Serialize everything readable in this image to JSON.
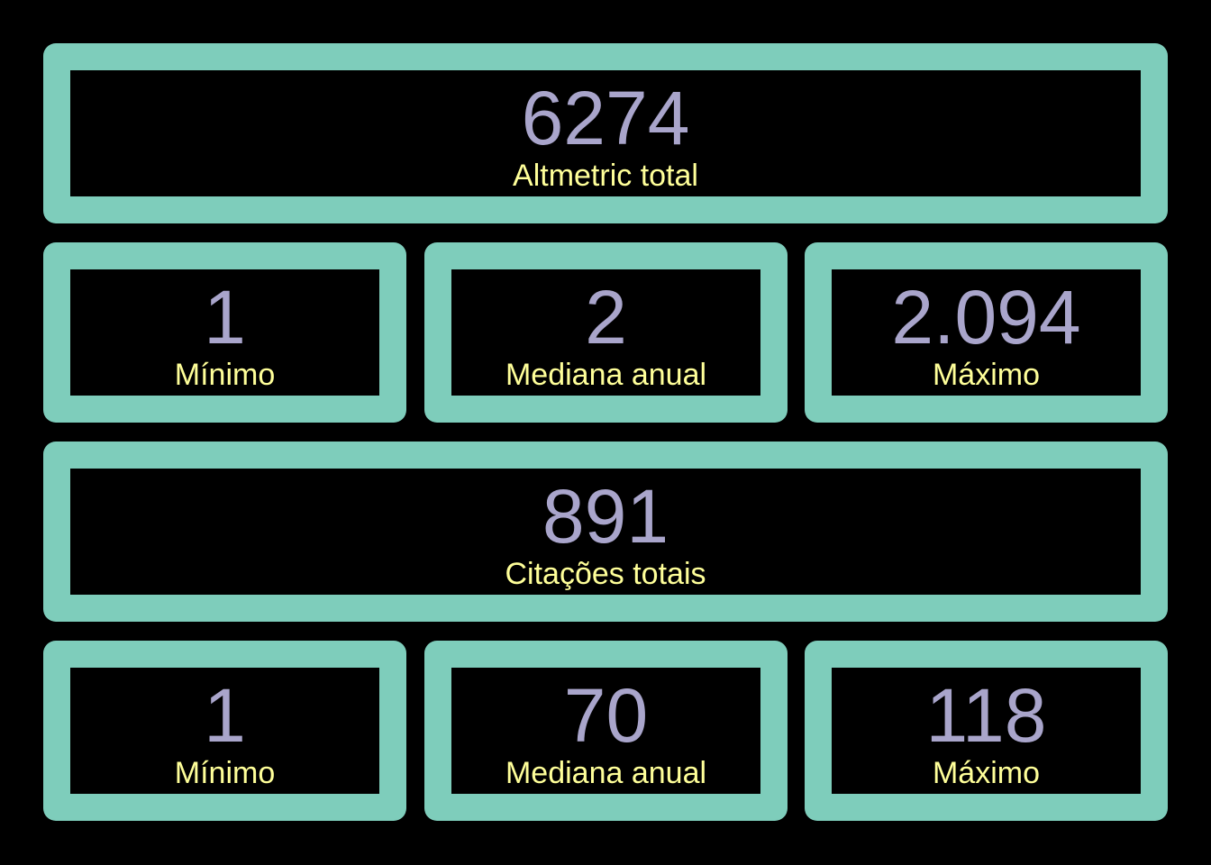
{
  "colors": {
    "background": "#000000",
    "card_border": "#7ECDBB",
    "value_text": "#A9A5CB",
    "label_text": "#FFFF99"
  },
  "altmetric": {
    "total": {
      "value": "6274",
      "label": "Altmetric total"
    },
    "min": {
      "value": "1",
      "label": "Mínimo"
    },
    "median": {
      "value": "2",
      "label": "Mediana anual"
    },
    "max": {
      "value": "2.094",
      "label": "Máximo"
    }
  },
  "citations": {
    "total": {
      "value": "891",
      "label": "Citações totais"
    },
    "min": {
      "value": "1",
      "label": "Mínimo"
    },
    "median": {
      "value": "70",
      "label": "Mediana anual"
    },
    "max": {
      "value": "118",
      "label": "Máximo"
    }
  }
}
